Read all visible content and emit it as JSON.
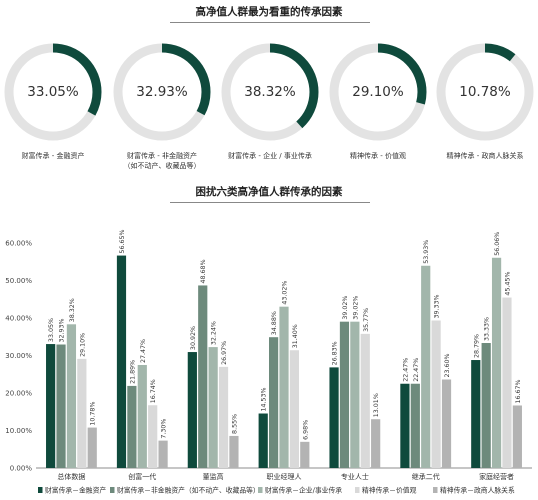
{
  "section1": {
    "title": "高净值人群最为看重的传承因素",
    "donuts": [
      {
        "value": 33.05,
        "label": "33.05%",
        "caption_line1": "财富传承 - 金融资产",
        "caption_line2": ""
      },
      {
        "value": 32.93,
        "label": "32.93%",
        "caption_line1": "财富传承 - 非金融资产",
        "caption_line2": "（如不动产、收藏品等）"
      },
      {
        "value": 38.32,
        "label": "38.32%",
        "caption_line1": "财富传承 - 企业 / 事业传承",
        "caption_line2": ""
      },
      {
        "value": 29.1,
        "label": "29.10%",
        "caption_line1": "精神传承 - 价值观",
        "caption_line2": ""
      },
      {
        "value": 10.78,
        "label": "10.78%",
        "caption_line1": "精神传承 - 政商人脉关系",
        "caption_line2": ""
      }
    ],
    "colors": {
      "arc": "#0f4a3c",
      "track": "#e3e3e3"
    }
  },
  "section2": {
    "title": "困扰六类高净值人群传承的因素"
  },
  "chart_data": {
    "type": "bar",
    "title": "困扰六类高净值人群传承的因素",
    "categories": [
      "总体数据",
      "创富一代",
      "董监高",
      "职业经理人",
      "专业人士",
      "继承二代",
      "家庭经营者"
    ],
    "ylim": [
      0,
      60
    ],
    "yticks": [
      0,
      10,
      20,
      30,
      40,
      50,
      60
    ],
    "ytick_labels": [
      "0.00%",
      "10.00%",
      "20.00%",
      "30.00%",
      "40.00%",
      "50.00%",
      "60.00%"
    ],
    "grid": false,
    "legend_position": "bottom",
    "series": [
      {
        "name": "财富传承－金融资产",
        "color": "#0f4a3c",
        "values": [
          33.05,
          56.65,
          30.92,
          14.53,
          26.83,
          22.47,
          28.79
        ],
        "labels": [
          "33.05%",
          "56.65%",
          "30.92%",
          "14.53%",
          "26.83%",
          "22.47%",
          "28.79%"
        ]
      },
      {
        "name": "财富传承－非金融资产（如不动产、收藏品等）",
        "color": "#6d8a7c",
        "values": [
          32.93,
          21.89,
          48.68,
          34.88,
          39.02,
          22.47,
          33.33
        ],
        "labels": [
          "32.93%",
          "21.89%",
          "48.68%",
          "34.88%",
          "39.02%",
          "22.47%",
          "33.33%"
        ]
      },
      {
        "name": "财富传承－企业/事业传承",
        "color": "#a2b6ab",
        "values": [
          38.32,
          27.47,
          32.24,
          43.02,
          39.02,
          53.93,
          56.06
        ],
        "labels": [
          "38.32%",
          "27.47%",
          "32.24%",
          "43.02%",
          "39.02%",
          "53.93%",
          "56.06%"
        ]
      },
      {
        "name": "精神传承－价值观",
        "color": "#d9d9d9",
        "values": [
          29.1,
          16.74,
          26.97,
          31.4,
          35.77,
          39.33,
          45.45
        ],
        "labels": [
          "29.10%",
          "16.74%",
          "26.97%",
          "31.40%",
          "35.77%",
          "39.33%",
          "45.45%"
        ]
      },
      {
        "name": "精神传承－政商人脉关系",
        "color": "#b3b3b3",
        "values": [
          10.78,
          7.3,
          8.55,
          6.98,
          13.01,
          23.6,
          16.67
        ],
        "labels": [
          "10.78%",
          "7.30%",
          "8.55%",
          "6.98%",
          "13.01%",
          "23.60%",
          "16.67%"
        ]
      }
    ]
  }
}
